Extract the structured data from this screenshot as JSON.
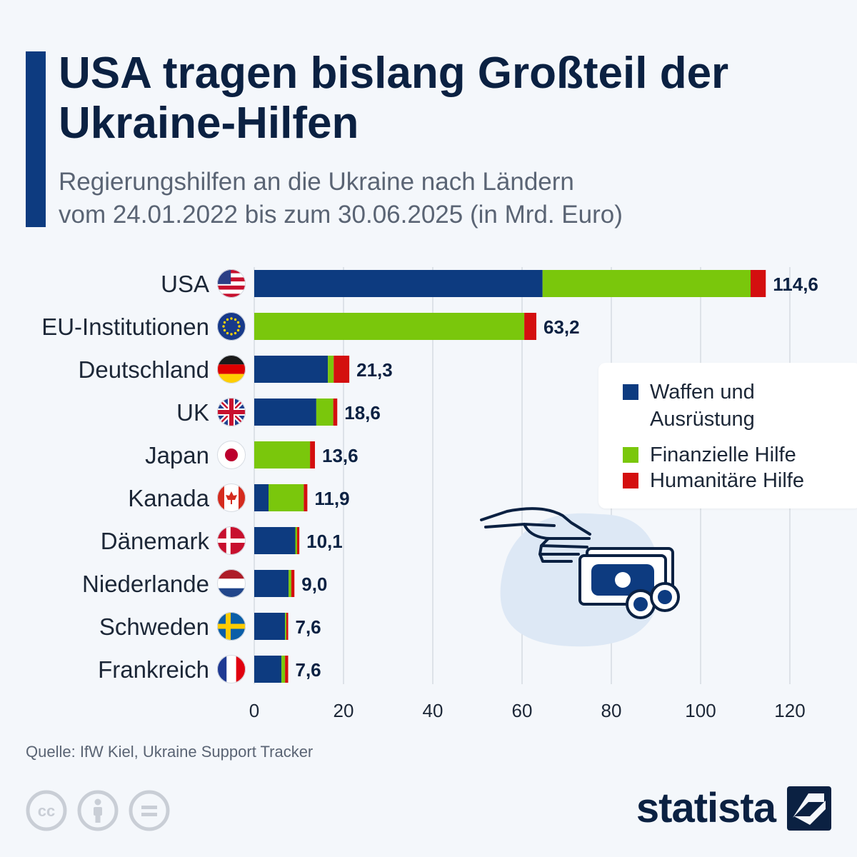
{
  "title": "USA tragen bislang Großteil der Ukraine-Hilfen",
  "subtitle_line1": "Regierungshilfen an die Ukraine nach Ländern",
  "subtitle_line2": "vom 24.01.2022 bis zum 30.06.2025 (in Mrd. Euro)",
  "colors": {
    "accent": "#0d3b80",
    "waffen": "#0d3b80",
    "finanz": "#7ac70c",
    "humanitaer": "#d40f0f",
    "grid": "#dde2e8"
  },
  "chart_data": {
    "type": "bar",
    "orientation": "horizontal",
    "stacked": true,
    "categories": [
      "USA",
      "EU-Institutionen",
      "Deutschland",
      "UK",
      "Japan",
      "Kanada",
      "Dänemark",
      "Niederlande",
      "Schweden",
      "Frankreich"
    ],
    "flags": [
      "flag-usa",
      "flag-eu",
      "flag-germany",
      "flag-uk",
      "flag-japan",
      "flag-canada",
      "flag-denmark",
      "flag-netherlands",
      "flag-sweden",
      "flag-france"
    ],
    "series": [
      {
        "name": "Waffen und Ausrüstung",
        "values": [
          64.6,
          0,
          16.5,
          13.9,
          0,
          3.2,
          9.2,
          7.7,
          6.9,
          6.1
        ]
      },
      {
        "name": "Finanzielle Hilfe",
        "values": [
          46.6,
          60.5,
          1.3,
          3.8,
          12.5,
          7.9,
          0.4,
          0.6,
          0.3,
          0.8
        ]
      },
      {
        "name": "Humanitäre Hilfe",
        "values": [
          3.4,
          2.7,
          3.5,
          0.9,
          1.1,
          0.8,
          0.5,
          0.7,
          0.4,
          0.7
        ]
      }
    ],
    "totals": [
      "114,6",
      "63,2",
      "21,3",
      "18,6",
      "13,6",
      "11,9",
      "10,1",
      "9,0",
      "7,6",
      "7,6"
    ],
    "xlim": [
      0,
      120
    ],
    "xticks": [
      0,
      20,
      40,
      60,
      80,
      100,
      120
    ],
    "grid": true,
    "legend_position": "right"
  },
  "source": "Quelle: IfW Kiel, Ukraine Support Tracker",
  "brand": "statista"
}
